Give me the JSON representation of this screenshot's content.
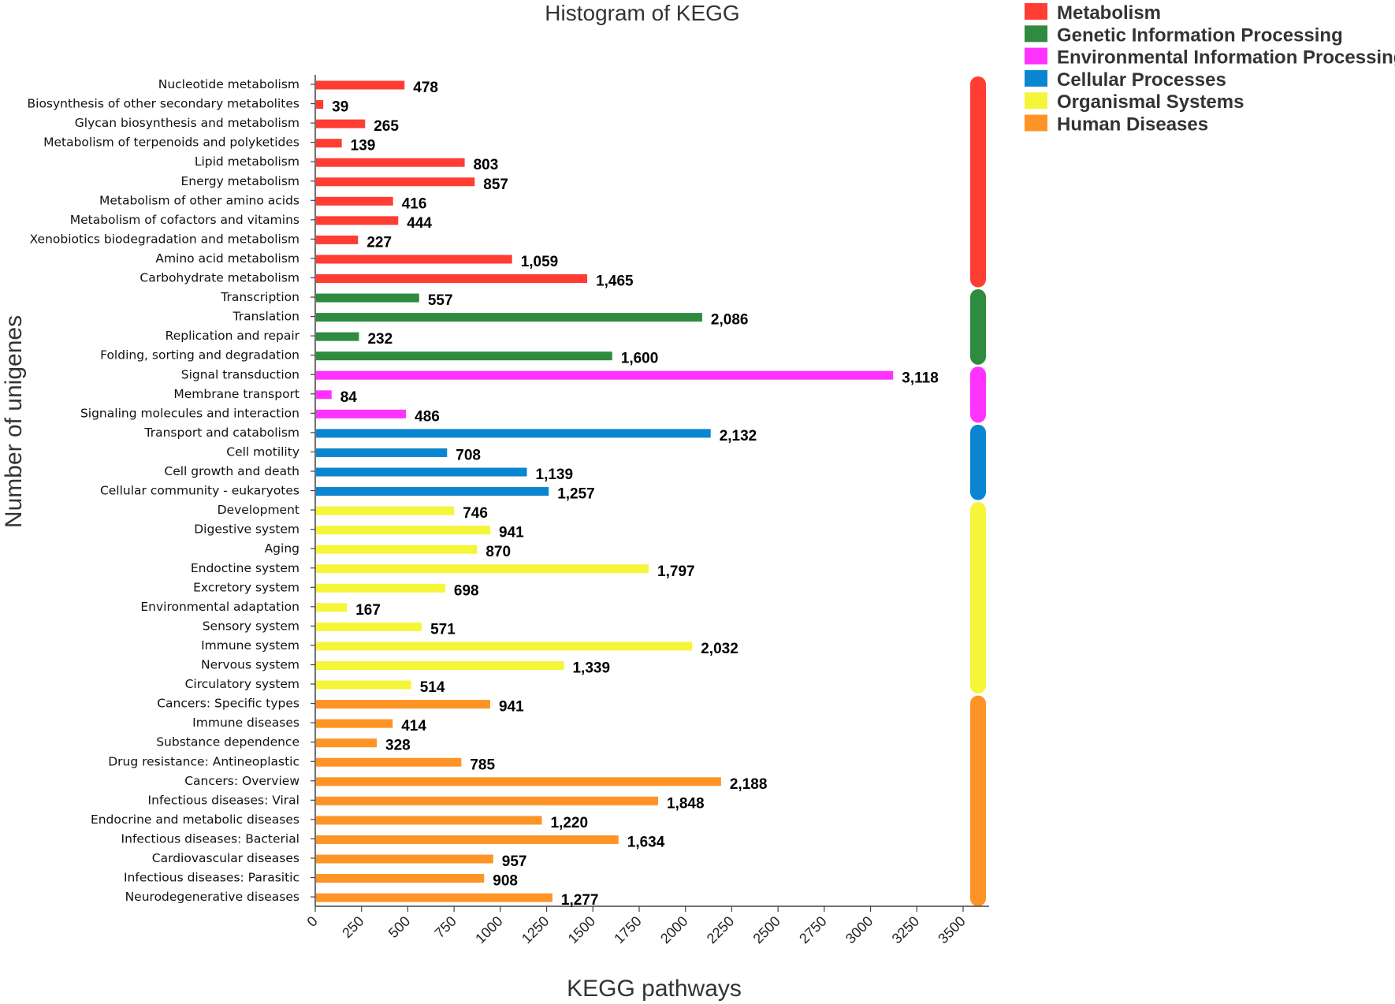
{
  "chart_data": {
    "type": "bar",
    "orientation": "horizontal",
    "title": "Histogram of KEGG",
    "xlabel": "KEGG pathways",
    "ylabel": "Number of unigenes",
    "xlim": [
      0,
      3500
    ],
    "xticks": [
      0,
      250,
      500,
      750,
      1000,
      1250,
      1500,
      1750,
      2000,
      2250,
      2500,
      2750,
      3000,
      3250,
      3500
    ],
    "legend_position": "top-right",
    "groups": [
      {
        "name": "Metabolism",
        "color": "#ff3d33"
      },
      {
        "name": "Genetic Information Processing",
        "color": "#2e8b3f"
      },
      {
        "name": "Environmental Information Processing",
        "color": "#ff33ff"
      },
      {
        "name": "Cellular Processes",
        "color": "#0a86d0"
      },
      {
        "name": "Organismal Systems",
        "color": "#f5f53a"
      },
      {
        "name": "Human Diseases",
        "color": "#ff9426"
      }
    ],
    "bars": [
      {
        "label": "Nucleotide metabolism",
        "value": 478,
        "display": "478",
        "group": 0
      },
      {
        "label": "Biosynthesis of other secondary metabolites",
        "value": 39,
        "display": "39",
        "group": 0
      },
      {
        "label": "Glycan biosynthesis and metabolism",
        "value": 265,
        "display": "265",
        "group": 0
      },
      {
        "label": "Metabolism of terpenoids and polyketides",
        "value": 139,
        "display": "139",
        "group": 0
      },
      {
        "label": "Lipid metabolism",
        "value": 803,
        "display": "803",
        "group": 0
      },
      {
        "label": "Energy metabolism",
        "value": 857,
        "display": "857",
        "group": 0
      },
      {
        "label": "Metabolism of other amino acids",
        "value": 416,
        "display": "416",
        "group": 0
      },
      {
        "label": "Metabolism of cofactors and vitamins",
        "value": 444,
        "display": "444",
        "group": 0
      },
      {
        "label": "Xenobiotics biodegradation and metabolism",
        "value": 227,
        "display": "227",
        "group": 0
      },
      {
        "label": "Amino acid metabolism",
        "value": 1059,
        "display": "1,059",
        "group": 0
      },
      {
        "label": "Carbohydrate metabolism",
        "value": 1465,
        "display": "1,465",
        "group": 0
      },
      {
        "label": "Transcription",
        "value": 557,
        "display": "557",
        "group": 1
      },
      {
        "label": "Translation",
        "value": 2086,
        "display": "2,086",
        "group": 1
      },
      {
        "label": "Replication and repair",
        "value": 232,
        "display": "232",
        "group": 1
      },
      {
        "label": "Folding, sorting and degradation",
        "value": 1600,
        "display": "1,600",
        "group": 1
      },
      {
        "label": "Signal transduction",
        "value": 3118,
        "display": "3,118",
        "group": 2
      },
      {
        "label": "Membrane transport",
        "value": 84,
        "display": "84",
        "group": 2
      },
      {
        "label": "Signaling molecules and interaction",
        "value": 486,
        "display": "486",
        "group": 2
      },
      {
        "label": "Transport and catabolism",
        "value": 2132,
        "display": "2,132",
        "group": 3
      },
      {
        "label": "Cell motility",
        "value": 708,
        "display": "708",
        "group": 3
      },
      {
        "label": "Cell growth and death",
        "value": 1139,
        "display": "1,139",
        "group": 3
      },
      {
        "label": "Cellular community - eukaryotes",
        "value": 1257,
        "display": "1,257",
        "group": 3
      },
      {
        "label": "Development",
        "value": 746,
        "display": "746",
        "group": 4
      },
      {
        "label": "Digestive system",
        "value": 941,
        "display": "941",
        "group": 4
      },
      {
        "label": "Aging",
        "value": 870,
        "display": "870",
        "group": 4
      },
      {
        "label": "Endoctine system",
        "value": 1797,
        "display": "1,797",
        "group": 4
      },
      {
        "label": "Excretory system",
        "value": 698,
        "display": "698",
        "group": 4
      },
      {
        "label": "Environmental adaptation",
        "value": 167,
        "display": "167",
        "group": 4
      },
      {
        "label": "Sensory system",
        "value": 571,
        "display": "571",
        "group": 4
      },
      {
        "label": "Immune system",
        "value": 2032,
        "display": "2,032",
        "group": 4
      },
      {
        "label": "Nervous system",
        "value": 1339,
        "display": "1,339",
        "group": 4
      },
      {
        "label": "Circulatory system",
        "value": 514,
        "display": "514",
        "group": 4
      },
      {
        "label": "Cancers: Specific types",
        "value": 941,
        "display": "941",
        "group": 5
      },
      {
        "label": "Immune diseases",
        "value": 414,
        "display": "414",
        "group": 5
      },
      {
        "label": "Substance dependence",
        "value": 328,
        "display": "328",
        "group": 5
      },
      {
        "label": "Drug resistance: Antineoplastic",
        "value": 785,
        "display": "785",
        "group": 5
      },
      {
        "label": "Cancers: Overview",
        "value": 2188,
        "display": "2,188",
        "group": 5
      },
      {
        "label": "Infectious diseases: Viral",
        "value": 1848,
        "display": "1,848",
        "group": 5
      },
      {
        "label": "Endocrine and metabolic diseases",
        "value": 1220,
        "display": "1,220",
        "group": 5
      },
      {
        "label": "Infectious diseases: Bacterial",
        "value": 1634,
        "display": "1,634",
        "group": 5
      },
      {
        "label": "Cardiovascular diseases",
        "value": 957,
        "display": "957",
        "group": 5
      },
      {
        "label": "Infectious diseases: Parasitic",
        "value": 908,
        "display": "908",
        "group": 5
      },
      {
        "label": "Neurodegenerative diseases",
        "value": 1277,
        "display": "1,277",
        "group": 5
      }
    ]
  }
}
